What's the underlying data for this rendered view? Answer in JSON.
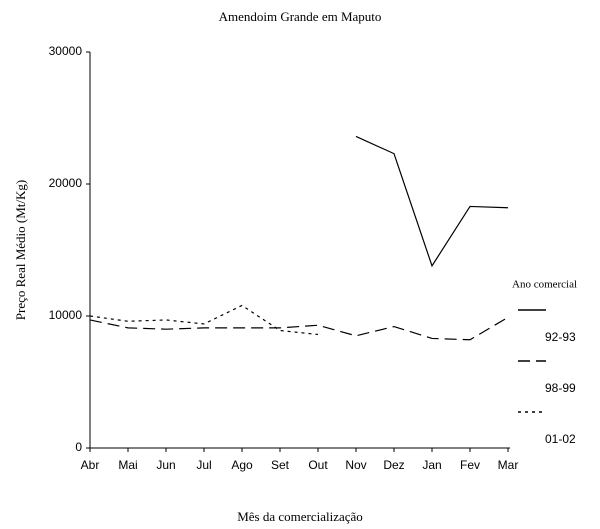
{
  "chart_data": {
    "type": "line",
    "title": "Amendoim Grande em Maputo",
    "x_label": "Mês da comercialização",
    "y_label": "Preço Real Médio (Mt/Kg)",
    "categories": [
      "Abr",
      "Mai",
      "Jun",
      "Jul",
      "Ago",
      "Set",
      "Out",
      "Nov",
      "Dez",
      "Jan",
      "Fev",
      "Mar"
    ],
    "legend_title": "Ano comercial",
    "series": [
      {
        "name": "92-93",
        "color": "#000000",
        "linestyle": "solid",
        "values": [
          null,
          null,
          null,
          null,
          null,
          null,
          null,
          23600,
          22300,
          13800,
          18300,
          18200
        ]
      },
      {
        "name": "98-99",
        "color": "#000000",
        "linestyle": "dashed",
        "values": [
          9700,
          9100,
          9000,
          9100,
          9100,
          9100,
          9300,
          8500,
          9200,
          8300,
          8200,
          9900
        ]
      },
      {
        "name": "01-02",
        "color": "#000000",
        "linestyle": "dotted",
        "values": [
          10000,
          9600,
          9700,
          9400,
          10800,
          8900,
          8600,
          null,
          null,
          null,
          null,
          null
        ]
      }
    ],
    "ylim": [
      0,
      30000
    ],
    "yticks": [
      0,
      10000,
      20000,
      30000
    ],
    "grid": false,
    "legend": "right"
  }
}
